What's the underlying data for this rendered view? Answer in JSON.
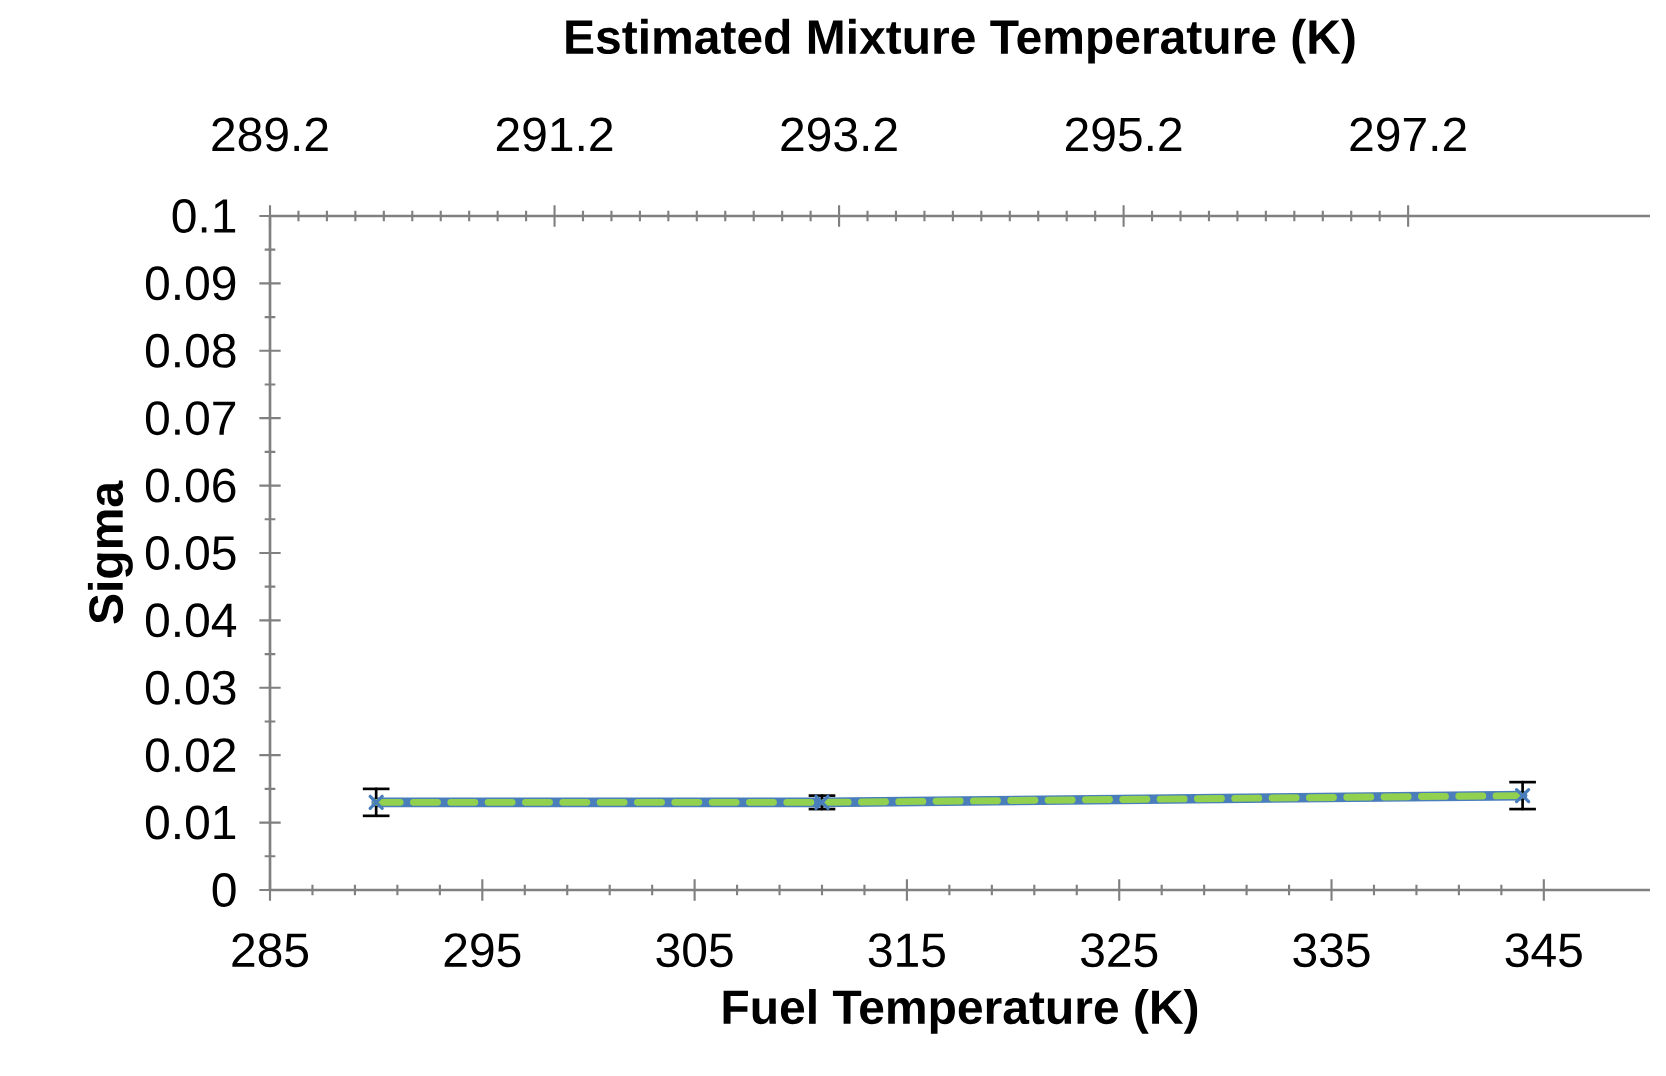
{
  "chart_data": {
    "type": "line",
    "x2label": "Estimated Mixture Temperature (K)",
    "xlabel": "Fuel Temperature (K)",
    "ylabel": "Sigma",
    "x": [
      290,
      311,
      344
    ],
    "series": [
      {
        "color": "#4a7ebb",
        "values": [
          0.013,
          0.013,
          0.014
        ],
        "errors": [
          0.002,
          0.001,
          0.002
        ],
        "marker": "cross",
        "line_style": "solid"
      },
      {
        "color": "#92d050",
        "values": [
          0.013,
          0.013,
          0.014
        ],
        "marker": "none",
        "line_style": "dashed"
      }
    ],
    "xlim": [
      285,
      350
    ],
    "xticks": [
      285,
      295,
      305,
      315,
      325,
      335,
      345
    ],
    "x2lim": [
      289.2,
      298.9
    ],
    "x2ticks": [
      289.2,
      291.2,
      293.2,
      295.2,
      297.2
    ],
    "ylim": [
      0,
      0.1
    ],
    "yticks": [
      0,
      0.01,
      0.02,
      0.03,
      0.04,
      0.05,
      0.06,
      0.07,
      0.08,
      0.09,
      0.1
    ]
  }
}
